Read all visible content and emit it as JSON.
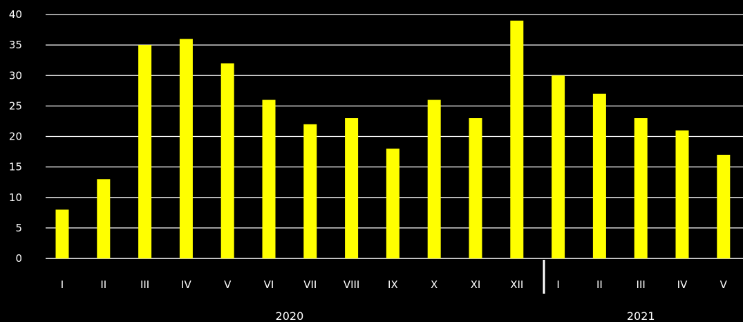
{
  "chart_data": {
    "type": "bar",
    "title": "",
    "xlabel": "",
    "ylabel": "",
    "ylim": [
      0,
      40
    ],
    "y_ticks": [
      "0",
      "5",
      "10",
      "15",
      "20",
      "25",
      "30",
      "35",
      "40"
    ],
    "grid": true,
    "categories": [
      "I",
      "II",
      "III",
      "IV",
      "V",
      "VI",
      "VII",
      "VIII",
      "IX",
      "X",
      "XI",
      "XII",
      "I",
      "II",
      "III",
      "IV",
      "V"
    ],
    "values": [
      8,
      13,
      35,
      36,
      32,
      26,
      22,
      23,
      18,
      26,
      23,
      39,
      30,
      27,
      23,
      21,
      17
    ],
    "groups": [
      {
        "label": "2020",
        "count": 12
      },
      {
        "label": "2021",
        "count": 5
      }
    ],
    "colors": {
      "background": "#000000",
      "bar": "#ffff00",
      "grid": "#ffffff",
      "text": "#ffffff"
    }
  }
}
